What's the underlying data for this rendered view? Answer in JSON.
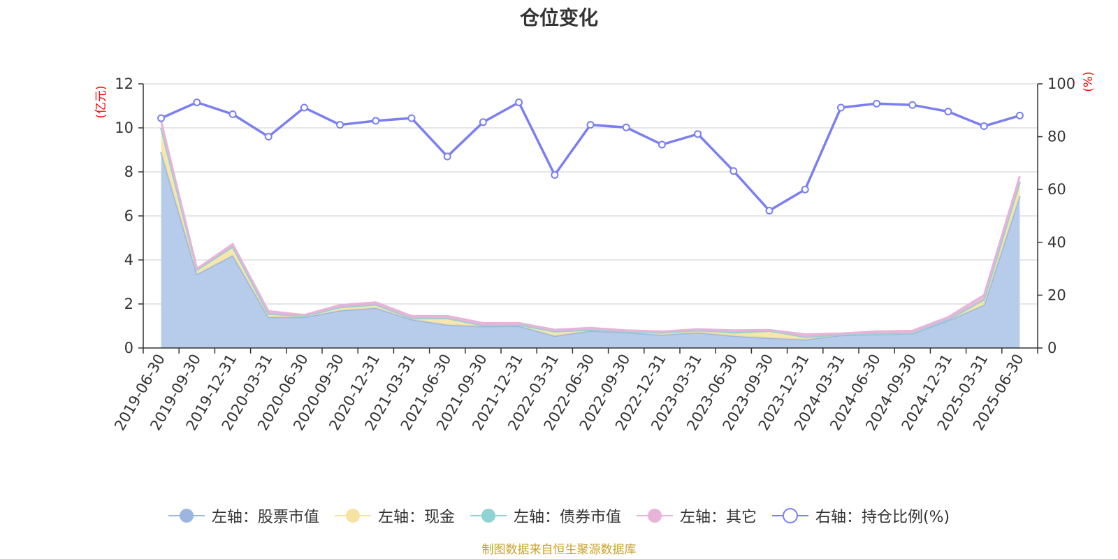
{
  "footer": "制图数据来自恒生聚源数据库",
  "colors": {
    "stock": "#9bb7e0",
    "stock_fill": "#b7cceb",
    "cash": "#f6e3a1",
    "bond": "#8fd3d3",
    "other": "#e8b3d8",
    "ratio": "#7b7ff0",
    "grid": "#cccccc",
    "unit_red": "#ff0000"
  },
  "chart_data": {
    "type": "area",
    "title": "仓位变化",
    "y_left_unit": "(亿元)",
    "y_right_unit": "(%)",
    "y_left_range": [
      0,
      12
    ],
    "y_left_ticks": [
      0,
      2,
      4,
      6,
      8,
      10,
      12
    ],
    "y_right_range": [
      0,
      100
    ],
    "y_right_ticks": [
      0,
      20,
      40,
      60,
      80,
      100
    ],
    "grid": true,
    "legend_position": "bottom",
    "categories": [
      "2019-06-30",
      "2019-09-30",
      "2019-12-31",
      "2020-03-31",
      "2020-06-30",
      "2020-09-30",
      "2020-12-31",
      "2021-03-31",
      "2021-06-30",
      "2021-09-30",
      "2021-12-31",
      "2022-03-31",
      "2022-06-30",
      "2022-09-30",
      "2022-12-31",
      "2023-03-31",
      "2023-06-30",
      "2023-09-30",
      "2023-12-31",
      "2024-03-31",
      "2024-06-30",
      "2024-09-30",
      "2024-12-31",
      "2025-03-31",
      "2025-06-30"
    ],
    "series": [
      {
        "name": "左轴：股票市值",
        "axis": "left",
        "type": "area",
        "values": [
          8.9,
          3.35,
          4.2,
          1.4,
          1.4,
          1.7,
          1.82,
          1.3,
          1.05,
          0.98,
          1.0,
          0.55,
          0.78,
          0.7,
          0.6,
          0.7,
          0.55,
          0.45,
          0.38,
          0.58,
          0.62,
          0.65,
          1.25,
          1.95,
          6.9
        ]
      },
      {
        "name": "左轴：现金",
        "axis": "left",
        "type": "area",
        "values": [
          1.1,
          0.2,
          0.4,
          0.15,
          0.05,
          0.15,
          0.15,
          0.05,
          0.3,
          0.05,
          0.05,
          0.2,
          0.05,
          0.05,
          0.1,
          0.1,
          0.1,
          0.28,
          0.12,
          0.03,
          0.03,
          0.03,
          0.05,
          0.2,
          0.6
        ]
      },
      {
        "name": "左轴：债券市值",
        "axis": "left",
        "type": "area",
        "values": [
          0,
          0,
          0,
          0,
          0,
          0,
          0,
          0,
          0,
          0,
          0,
          0,
          0,
          0,
          0,
          0,
          0.07,
          0.07,
          0,
          0,
          0,
          0,
          0,
          0.05,
          0.05
        ]
      },
      {
        "name": "左轴：其它",
        "axis": "left",
        "type": "area",
        "values": [
          0.3,
          0.05,
          0.12,
          0.12,
          0.05,
          0.1,
          0.1,
          0.1,
          0.1,
          0.1,
          0.08,
          0.08,
          0.08,
          0.05,
          0.05,
          0.05,
          0.08,
          0.02,
          0.12,
          0.05,
          0.1,
          0.1,
          0.1,
          0.2,
          0.25
        ]
      },
      {
        "name": "右轴：持仓比例(%)",
        "axis": "right",
        "type": "line",
        "values": [
          87,
          93,
          88.5,
          80,
          91,
          84.5,
          86,
          87,
          72.5,
          85.5,
          93,
          65.5,
          84.5,
          83.5,
          77,
          81,
          67,
          52,
          60,
          91,
          92.5,
          92,
          89.5,
          84,
          88
        ]
      }
    ]
  }
}
